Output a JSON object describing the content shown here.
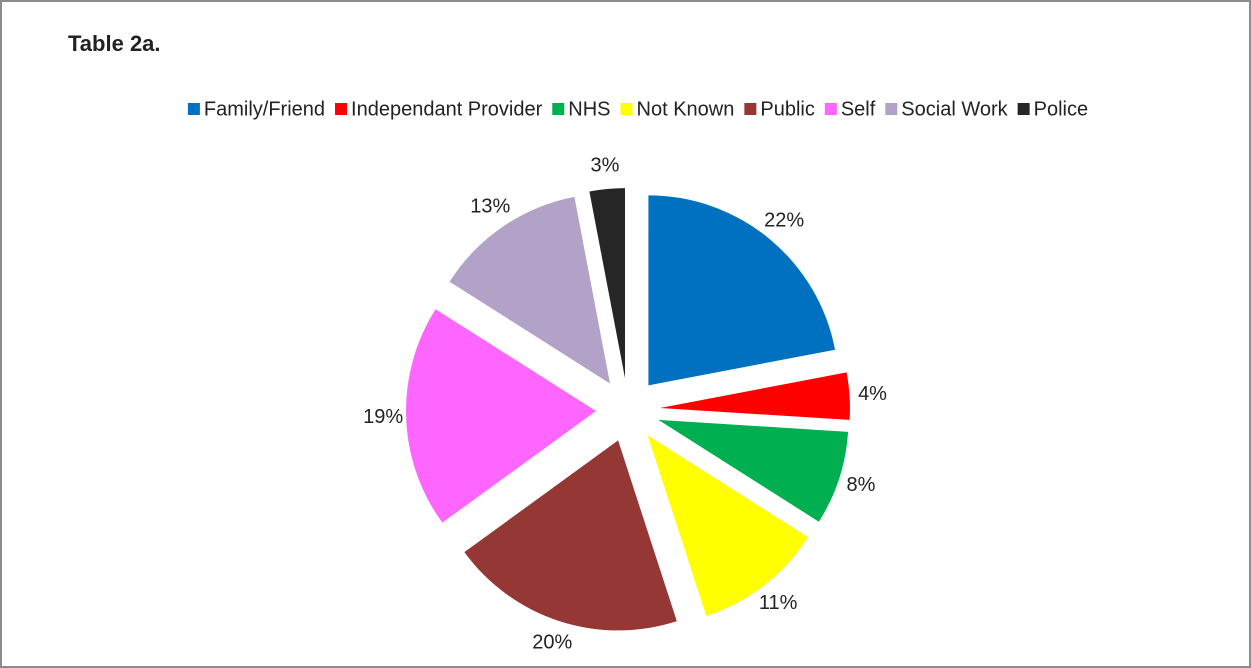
{
  "chart_data": {
    "type": "pie",
    "title": "Table 2a.",
    "categories": [
      "Family/Friend",
      "Independant Provider",
      "NHS",
      "Not Known",
      "Public",
      "Self",
      "Social Work",
      "Police"
    ],
    "values": [
      22,
      4,
      8,
      11,
      20,
      19,
      13,
      3
    ],
    "value_labels": [
      "22%",
      "4%",
      "8%",
      "11%",
      "20%",
      "19%",
      "13%",
      "3%"
    ],
    "colors": [
      "#0070c0",
      "#ff0000",
      "#00b050",
      "#ffff00",
      "#953735",
      "#ff66ff",
      "#b3a2c7",
      "#262626"
    ],
    "exploded": true,
    "legend": "top"
  }
}
